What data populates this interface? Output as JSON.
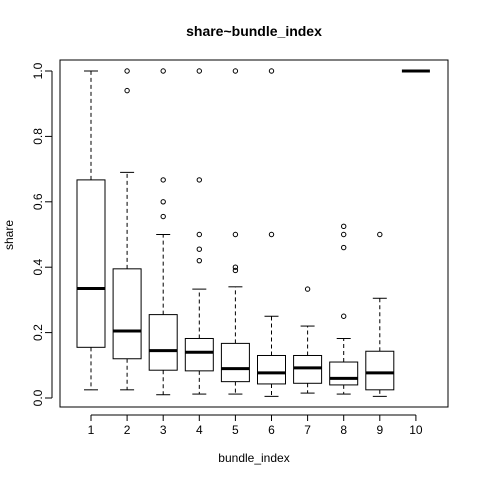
{
  "chart_data": {
    "type": "boxplot",
    "title": "share~bundle_index",
    "xlabel": "bundle_index",
    "ylabel": "share",
    "categories": [
      "1",
      "2",
      "3",
      "4",
      "5",
      "6",
      "7",
      "8",
      "9",
      "10"
    ],
    "yticks": [
      0.0,
      0.2,
      0.4,
      0.6,
      0.8,
      1.0
    ],
    "ytick_labels": [
      "0.0",
      "0.2",
      "0.4",
      "0.6",
      "0.8",
      "1.0"
    ],
    "ylim": [
      -0.03,
      1.03
    ],
    "grid": false,
    "boxes": [
      {
        "category": "1",
        "whisker_low": 0.025,
        "q1": 0.155,
        "median": 0.335,
        "q3": 0.667,
        "whisker_high": 1.0,
        "outliers": []
      },
      {
        "category": "2",
        "whisker_low": 0.025,
        "q1": 0.12,
        "median": 0.205,
        "q3": 0.395,
        "whisker_high": 0.69,
        "outliers": [
          0.94,
          1.0
        ]
      },
      {
        "category": "3",
        "whisker_low": 0.01,
        "q1": 0.085,
        "median": 0.145,
        "q3": 0.255,
        "whisker_high": 0.5,
        "outliers": [
          0.555,
          0.6,
          0.667,
          1.0
        ]
      },
      {
        "category": "4",
        "whisker_low": 0.012,
        "q1": 0.083,
        "median": 0.14,
        "q3": 0.182,
        "whisker_high": 0.333,
        "outliers": [
          0.42,
          0.455,
          0.5,
          0.667,
          1.0
        ]
      },
      {
        "category": "5",
        "whisker_low": 0.012,
        "q1": 0.05,
        "median": 0.09,
        "q3": 0.167,
        "whisker_high": 0.34,
        "outliers": [
          0.39,
          0.4,
          0.5,
          1.0
        ]
      },
      {
        "category": "6",
        "whisker_low": 0.005,
        "q1": 0.043,
        "median": 0.077,
        "q3": 0.13,
        "whisker_high": 0.25,
        "outliers": [
          0.5,
          1.0
        ]
      },
      {
        "category": "7",
        "whisker_low": 0.015,
        "q1": 0.045,
        "median": 0.092,
        "q3": 0.13,
        "whisker_high": 0.22,
        "outliers": [
          0.333
        ]
      },
      {
        "category": "8",
        "whisker_low": 0.012,
        "q1": 0.04,
        "median": 0.06,
        "q3": 0.11,
        "whisker_high": 0.182,
        "outliers": [
          0.25,
          0.46,
          0.5,
          0.525
        ]
      },
      {
        "category": "9",
        "whisker_low": 0.005,
        "q1": 0.025,
        "median": 0.077,
        "q3": 0.143,
        "whisker_high": 0.305,
        "outliers": [
          0.5
        ]
      },
      {
        "category": "10",
        "whisker_low": 1.0,
        "q1": 1.0,
        "median": 1.0,
        "q3": 1.0,
        "whisker_high": 1.0,
        "outliers": []
      }
    ]
  }
}
